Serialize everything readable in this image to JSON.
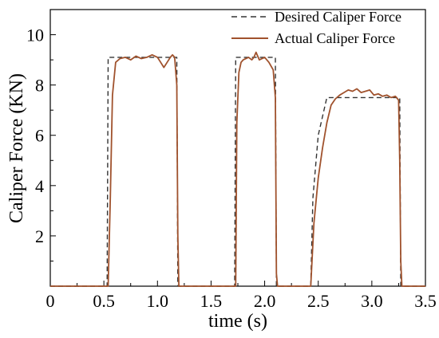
{
  "chart_data": {
    "type": "line",
    "xlabel": "time (s)",
    "ylabel": "Caliper Force (KN)",
    "xlim": [
      0,
      3.5
    ],
    "ylim": [
      0,
      11
    ],
    "xticks": [
      "0",
      "0.5",
      "1.0",
      "1.5",
      "2.0",
      "2.5",
      "3.0",
      "3.5"
    ],
    "xtick_values": [
      0,
      0.5,
      1.0,
      1.5,
      2.0,
      2.5,
      3.0,
      3.5
    ],
    "yticks": [
      "2",
      "4",
      "6",
      "8",
      "10"
    ],
    "ytick_values": [
      2,
      4,
      6,
      8,
      10
    ],
    "grid": false,
    "legend": "top-right",
    "series": [
      {
        "name": "Desired Caliper Force",
        "style": "dashed",
        "color": "#333333",
        "x": [
          0,
          0.53,
          0.54,
          1.18,
          1.19,
          1.72,
          1.73,
          2.1,
          2.11,
          2.43,
          2.45,
          2.5,
          2.58,
          3.26,
          3.27,
          3.5
        ],
        "y": [
          0,
          0,
          9.1,
          9.1,
          0,
          0,
          9.1,
          9.1,
          0,
          0,
          3.5,
          6.0,
          7.5,
          7.5,
          0,
          0
        ]
      },
      {
        "name": "Actual Caliper Force",
        "style": "solid",
        "color": "#a0522d",
        "x": [
          0,
          0.54,
          0.56,
          0.58,
          0.61,
          0.65,
          0.7,
          0.75,
          0.8,
          0.85,
          0.9,
          0.95,
          1.0,
          1.03,
          1.06,
          1.09,
          1.12,
          1.14,
          1.16,
          1.18,
          1.19,
          1.2,
          1.73,
          1.74,
          1.76,
          1.78,
          1.8,
          1.85,
          1.88,
          1.9,
          1.92,
          1.95,
          2.0,
          2.04,
          2.08,
          2.1,
          2.11,
          2.12,
          2.43,
          2.46,
          2.5,
          2.54,
          2.58,
          2.62,
          2.66,
          2.7,
          2.74,
          2.78,
          2.82,
          2.86,
          2.9,
          2.94,
          2.98,
          3.02,
          3.06,
          3.1,
          3.14,
          3.18,
          3.22,
          3.25,
          3.26,
          3.27,
          3.28,
          3.5
        ],
        "y": [
          0,
          0,
          3.5,
          7.6,
          8.9,
          9.05,
          9.1,
          9.0,
          9.15,
          9.05,
          9.1,
          9.2,
          9.1,
          8.9,
          8.7,
          8.9,
          9.1,
          9.2,
          9.1,
          8.0,
          2.0,
          0,
          0,
          6.5,
          8.5,
          8.9,
          9.0,
          9.1,
          9.0,
          9.1,
          9.3,
          9.0,
          9.1,
          8.9,
          8.6,
          7.5,
          0.5,
          0,
          0,
          2.5,
          4.3,
          5.5,
          6.5,
          7.2,
          7.45,
          7.6,
          7.7,
          7.8,
          7.75,
          7.85,
          7.7,
          7.75,
          7.8,
          7.6,
          7.65,
          7.55,
          7.6,
          7.5,
          7.55,
          7.4,
          5.0,
          1.0,
          0,
          0
        ]
      }
    ]
  }
}
